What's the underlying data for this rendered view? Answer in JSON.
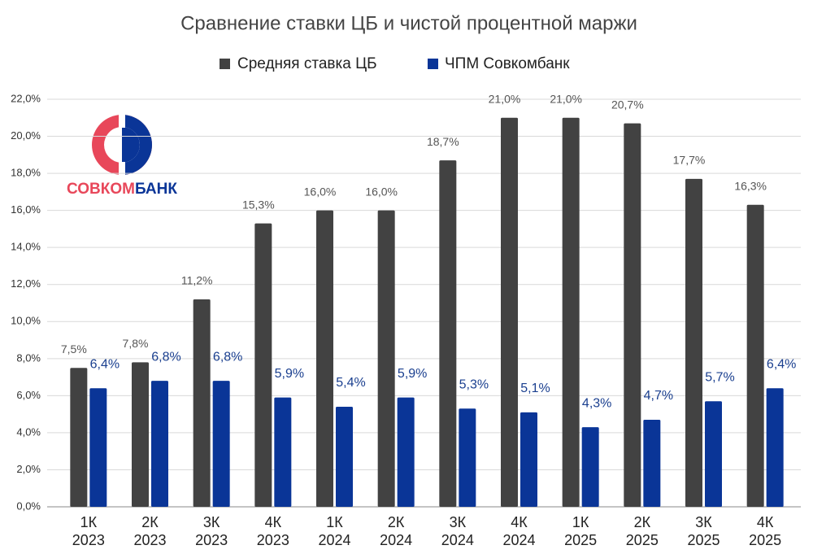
{
  "chart_data": {
    "type": "bar",
    "title": "Сравнение ставки ЦБ и чистой процентной маржи",
    "logo": [
      "СОВКОМ",
      "БАНК"
    ],
    "categories": [
      [
        "1К",
        "2023"
      ],
      [
        "2К",
        "2023"
      ],
      [
        "3К",
        "2023"
      ],
      [
        "4К",
        "2023"
      ],
      [
        "1К",
        "2024"
      ],
      [
        "2К",
        "2024"
      ],
      [
        "3К",
        "2024"
      ],
      [
        "4К",
        "2024"
      ],
      [
        "1К",
        "2025"
      ],
      [
        "2К",
        "2025"
      ],
      [
        "3К",
        "2025"
      ],
      [
        "4К",
        "2025"
      ]
    ],
    "series": [
      {
        "name": "Средняя ставка ЦБ",
        "color": "#424242",
        "values": [
          7.5,
          7.8,
          11.2,
          15.3,
          16.0,
          16.0,
          18.7,
          21.0,
          21.0,
          20.7,
          17.7,
          16.3
        ],
        "value_labels": [
          "7,5%",
          "7,8%",
          "11,2%",
          "15,3%",
          "16,0%",
          "16,0%",
          "18,7%",
          "21,0%",
          "21,0%",
          "20,7%",
          "17,7%",
          "16,3%"
        ]
      },
      {
        "name": "ЧПМ Совкомбанк",
        "color": "#0a3597",
        "values": [
          6.4,
          6.8,
          6.8,
          5.9,
          5.4,
          5.9,
          5.3,
          5.1,
          4.3,
          4.7,
          5.7,
          6.4
        ],
        "value_labels": [
          "6,4%",
          "6,8%",
          "6,8%",
          "5,9%",
          "5,4%",
          "5,9%",
          "5,3%",
          "5,1%",
          "4,3%",
          "4,7%",
          "5,7%",
          "6,4%"
        ]
      }
    ],
    "ylim": [
      0,
      22
    ],
    "yticks": [
      {
        "value": 0,
        "label": "0,0%"
      },
      {
        "value": 2,
        "label": "2,0%"
      },
      {
        "value": 4,
        "label": "4,0%"
      },
      {
        "value": 6,
        "label": "6,0%"
      },
      {
        "value": 8,
        "label": "8,0%"
      },
      {
        "value": 10,
        "label": "10,0%"
      },
      {
        "value": 12,
        "label": "12,0%"
      },
      {
        "value": 14,
        "label": "14,0%"
      },
      {
        "value": 16,
        "label": "16,0%"
      },
      {
        "value": 18,
        "label": "18,0%"
      },
      {
        "value": 20,
        "label": "20,0%"
      },
      {
        "value": 22,
        "label": "22,0%"
      }
    ],
    "grid": true
  }
}
